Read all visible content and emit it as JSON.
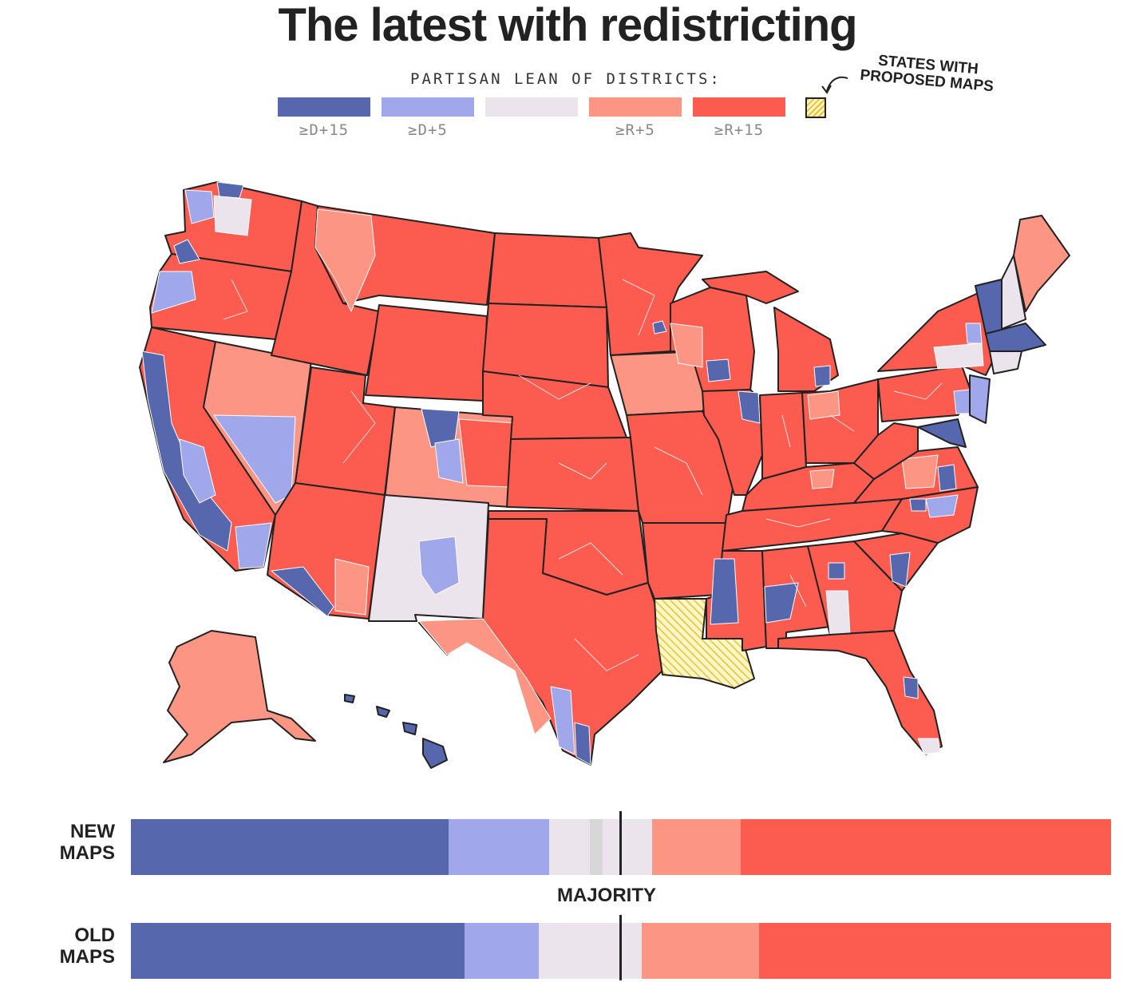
{
  "title": "The latest with redistricting",
  "legend": {
    "title": "PARTISAN LEAN OF DISTRICTS:",
    "items": [
      {
        "label": "≥D+15",
        "color": "#5767ad"
      },
      {
        "label": "≥D+5",
        "color": "#a0a8eb"
      },
      {
        "label": "",
        "color": "#ebe4ec"
      },
      {
        "label": "≥R+5",
        "color": "#fd9584"
      },
      {
        "label": "≥R+15",
        "color": "#fc5b50"
      }
    ],
    "proposed_label_line1": "STATES WITH",
    "proposed_label_line2": "PROPOSED MAPS",
    "proposed_color": "#f4d34a"
  },
  "bars": {
    "new_label_line1": "NEW",
    "new_label_line2": "MAPS",
    "old_label_line1": "OLD",
    "old_label_line2": "MAPS",
    "majority_label": "MAJORITY",
    "new_segments": [
      {
        "share": 0.324,
        "color": "#5767ad"
      },
      {
        "share": 0.103,
        "color": "#a0a8eb"
      },
      {
        "share": 0.041,
        "color": "#ebe4ec"
      },
      {
        "share": 0.013,
        "color": "#d7d7d7"
      },
      {
        "share": 0.051,
        "color": "#ebe4ec"
      },
      {
        "share": 0.09,
        "color": "#fd9584"
      },
      {
        "share": 0.378,
        "color": "#fc5b50"
      }
    ],
    "old_segments": [
      {
        "share": 0.34,
        "color": "#5767ad"
      },
      {
        "share": 0.076,
        "color": "#a0a8eb"
      },
      {
        "share": 0.105,
        "color": "#ebe4ec"
      },
      {
        "share": 0.12,
        "color": "#fd9584"
      },
      {
        "share": 0.359,
        "color": "#fc5b50"
      }
    ]
  },
  "map_colors": {
    "d15": "#5767ad",
    "d5": "#a0a8eb",
    "even": "#ebe4ec",
    "r5": "#fd9584",
    "r15": "#fc5b50",
    "proposed": "#f4d34a",
    "border": "#222222"
  }
}
